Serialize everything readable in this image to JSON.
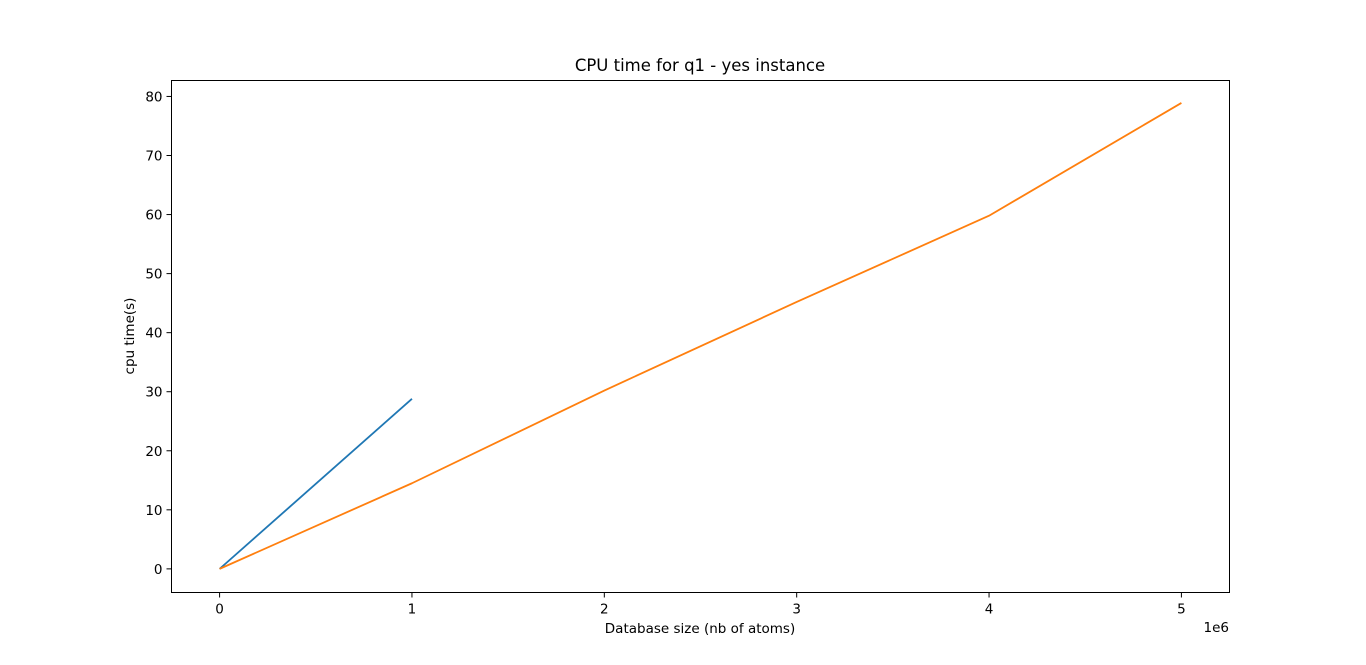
{
  "chart_data": {
    "type": "line",
    "title": "CPU time for q1 - yes instance",
    "xlabel": "Database size (nb of atoms)",
    "ylabel": "cpu time(s)",
    "x_offset_label": "1e6",
    "xlim": [
      -0.25,
      5.25
    ],
    "ylim": [
      -4,
      82.7
    ],
    "x_ticks": [
      0,
      1,
      2,
      3,
      4,
      5
    ],
    "x_tick_labels": [
      "0",
      "1",
      "2",
      "3",
      "4",
      "5"
    ],
    "y_ticks": [
      0,
      10,
      20,
      30,
      40,
      50,
      60,
      70,
      80
    ],
    "y_tick_labels": [
      "0",
      "10",
      "20",
      "30",
      "40",
      "50",
      "60",
      "70",
      "80"
    ],
    "grid": false,
    "legend": "none",
    "series": [
      {
        "color": "#1f77b4",
        "points": [
          [
            0,
            0
          ],
          [
            1,
            28.8
          ]
        ]
      },
      {
        "color": "#ff7f0e",
        "points": [
          [
            0,
            0
          ],
          [
            1,
            14.5
          ],
          [
            2,
            30.2
          ],
          [
            3,
            45.2
          ],
          [
            4,
            59.8
          ],
          [
            5,
            78.9
          ]
        ]
      }
    ]
  }
}
